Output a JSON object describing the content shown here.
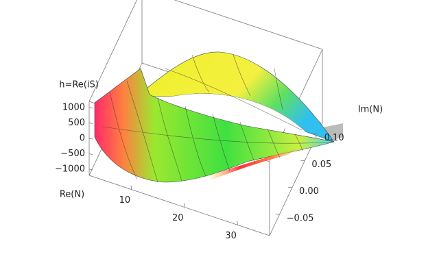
{
  "chart_data": {
    "type": "surface3d",
    "zlabel": "h=Re(iS)",
    "xlabel": "Re(N)",
    "ylabel": "Im(N)",
    "xlim": [
      2,
      36
    ],
    "xticks": [
      10,
      20,
      30
    ],
    "ylim": [
      -0.09,
      0.12
    ],
    "yticks": [
      {
        "value": 0.1,
        "label": "0.10"
      },
      0.05,
      {
        "value": 0,
        "label": "0.00"
      },
      {
        "value": -0.05,
        "label": "−0.05"
      }
    ],
    "zlim": [
      -1200,
      1200
    ],
    "zticks": [
      1000,
      500,
      0,
      {
        "value": -500,
        "label": "−500"
      },
      {
        "value": -1000,
        "label": "−1000"
      }
    ]
  }
}
